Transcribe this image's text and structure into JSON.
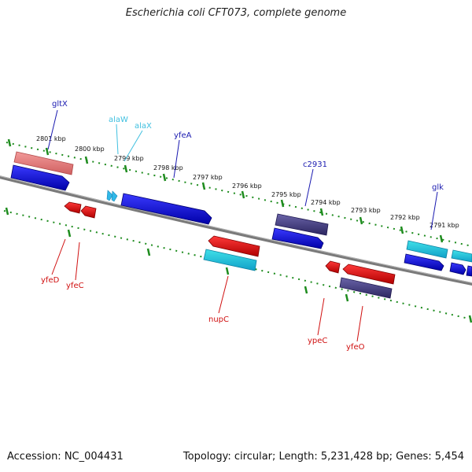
{
  "title": "Escherichia coli CFT073, complete genome",
  "footer": {
    "accession": "Accession: NC_004431",
    "summary": "Topology: circular; Length: 5,231,428 bp; Genes: 5,454"
  },
  "colors": {
    "forward_gene": "#1010d0",
    "reverse_gene": "#e01818",
    "rna_gene": "#30b8e8",
    "pseudo_gene": "#e07070",
    "hypothetical_gene": "#403878",
    "kbp_tick": "#1e8c1e",
    "backbone": "#808080",
    "label_forward": "#1a1ab0",
    "label_rna": "#40c0e0",
    "label_reverse": "#d01010"
  },
  "scale_labels": [
    "2801 kbp",
    "2800 kbp",
    "2799 kbp",
    "2798 kbp",
    "2797 kbp",
    "2796 kbp",
    "2795 kbp",
    "2794 kbp",
    "2793 kbp",
    "2792 kbp",
    "2791 kbp"
  ],
  "gene_labels": {
    "gltX": "gltX",
    "alaW": "alaW",
    "alaX": "alaX",
    "yfeA": "yfeA",
    "c2931": "c2931",
    "glk": "glk",
    "yfeD": "yfeD",
    "yfeC": "yfeC",
    "nupC": "nupC",
    "ypeC": "ypeC",
    "yfeO": "yfeO"
  }
}
